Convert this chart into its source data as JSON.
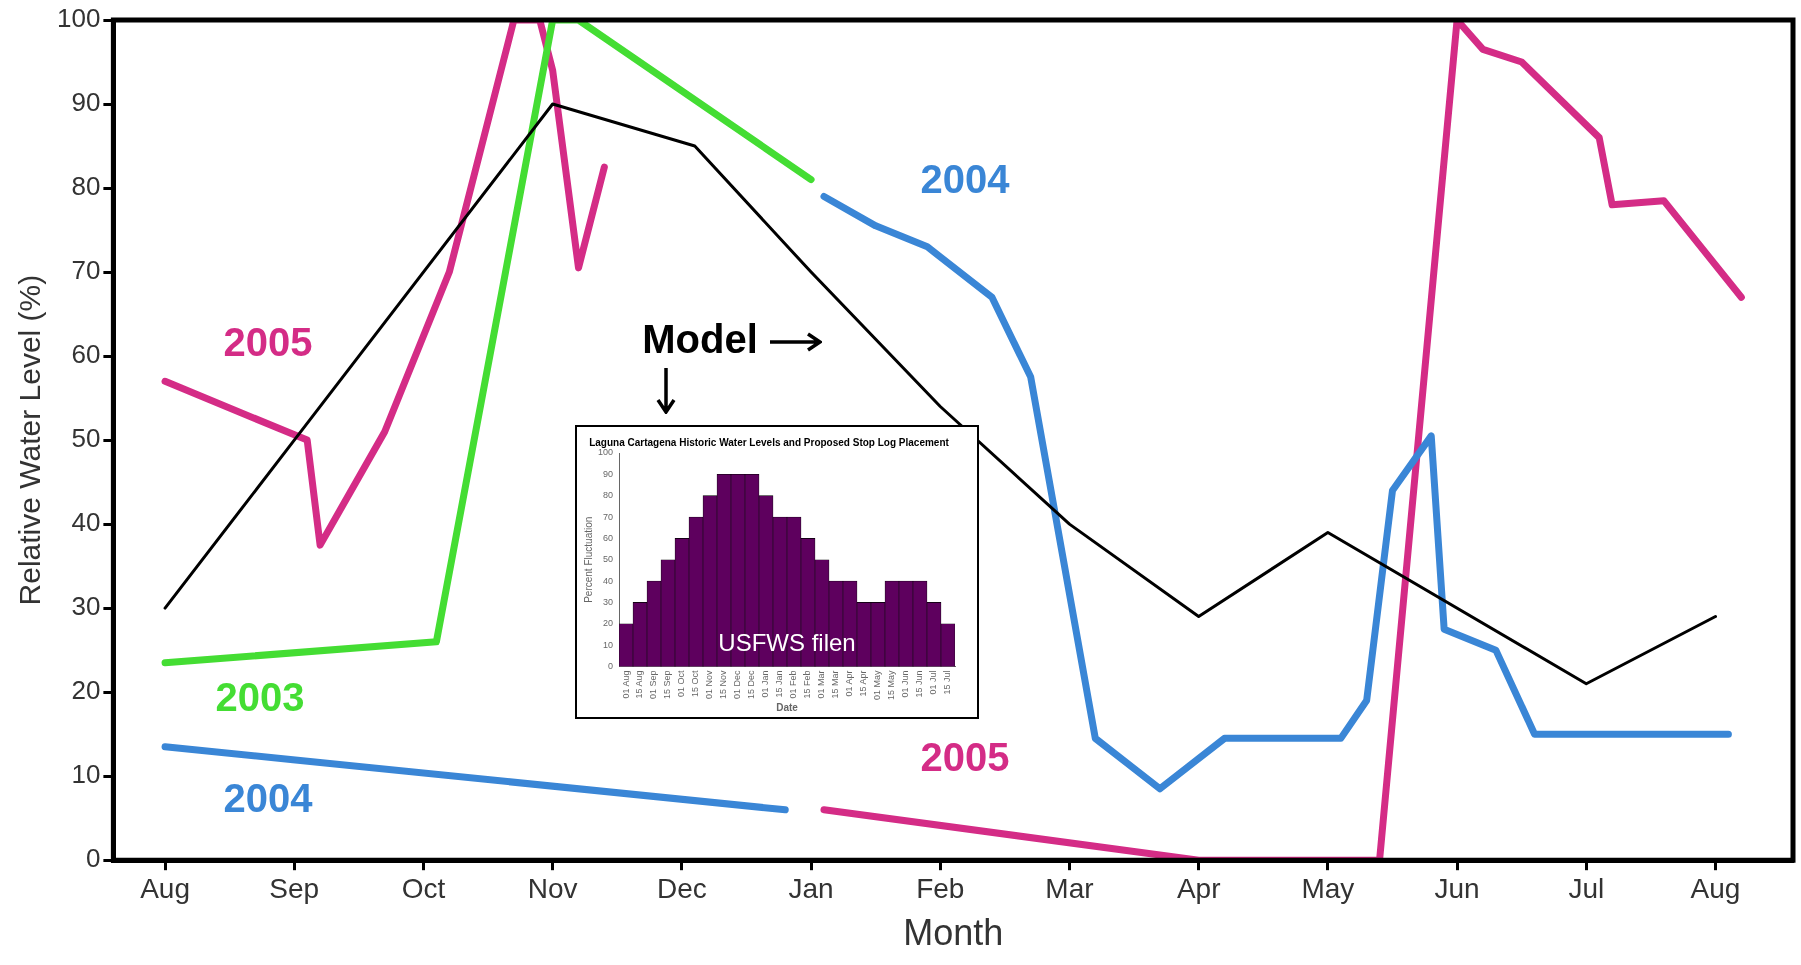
{
  "chart_data": [
    {
      "type": "line",
      "xlabel": "Month",
      "ylabel": "Relative Water Level (%)",
      "categories": [
        null,
        null,
        null,
        null,
        "Aug",
        null,
        null,
        null,
        null,
        null,
        null,
        null,
        null,
        null,
        "Sep",
        null,
        null,
        null,
        null,
        null,
        null,
        null,
        null,
        null,
        "Oct",
        null,
        null,
        null,
        null,
        null,
        null,
        null,
        null,
        null,
        "Nov",
        null,
        null,
        null,
        null,
        null,
        null,
        null,
        null,
        null,
        "Dec",
        null,
        null,
        null,
        null,
        null,
        null,
        null,
        null,
        null,
        "Jan",
        null,
        null,
        null,
        null,
        null,
        null,
        null,
        null,
        null,
        "Feb",
        null,
        null,
        null,
        null,
        null,
        null,
        null,
        null,
        null,
        "Mar",
        null,
        null,
        null,
        null,
        null,
        null,
        null,
        null,
        null,
        "Apr",
        null,
        null,
        null,
        null,
        null,
        null,
        null,
        null,
        null,
        "May",
        null,
        null,
        null,
        null,
        null,
        null,
        null,
        null,
        null,
        "Jun",
        null,
        null,
        null,
        null,
        null,
        null,
        null,
        null,
        null,
        "Jul",
        null,
        null,
        null,
        null,
        null,
        null,
        null,
        null,
        null,
        "Aug",
        null,
        null,
        null,
        null,
        null,
        null
      ],
      "ylim": [
        0,
        100
      ],
      "yticks": [
        0,
        10,
        20,
        30,
        40,
        50,
        60,
        70,
        80,
        90,
        100
      ],
      "series": [
        {
          "name": "Model",
          "color": "#000000",
          "values": [
            null,
            null,
            null,
            null,
            30,
            null,
            null,
            null,
            null,
            null,
            null,
            null,
            null,
            null,
            50,
            null,
            null,
            null,
            null,
            null,
            null,
            null,
            null,
            null,
            null,
            null,
            null,
            null,
            null,
            null,
            null,
            null,
            null,
            null,
            90,
            null,
            null,
            null,
            null,
            null,
            null,
            null,
            null,
            null,
            null,
            85,
            null,
            null,
            null,
            null,
            null,
            null,
            null,
            null,
            70,
            null,
            null,
            null,
            null,
            null,
            null,
            null,
            null,
            null,
            54,
            null,
            null,
            null,
            null,
            null,
            null,
            null,
            null,
            null,
            40,
            null,
            null,
            null,
            null,
            null,
            null,
            null,
            null,
            null,
            29,
            null,
            null,
            null,
            null,
            null,
            null,
            null,
            null,
            null,
            39,
            null,
            null,
            null,
            null,
            null,
            null,
            null,
            null,
            null,
            null,
            null,
            null,
            null,
            null,
            null,
            null,
            null,
            null,
            null,
            21,
            null,
            null,
            null,
            null,
            null,
            null,
            null,
            null,
            null,
            29,
            null,
            null,
            null,
            null,
            null,
            null
          ]
        },
        {
          "name": "2003",
          "color": "#44dd33",
          "values": [
            null,
            null,
            null,
            null,
            23.5,
            null,
            null,
            null,
            null,
            null,
            null,
            null,
            null,
            null,
            null,
            null,
            null,
            null,
            null,
            null,
            null,
            null,
            null,
            null,
            null,
            26,
            null,
            null,
            null,
            null,
            null,
            null,
            null,
            null,
            100,
            null,
            100,
            null,
            null,
            null,
            null,
            null,
            null,
            null,
            null,
            null,
            null,
            null,
            null,
            null,
            null,
            null,
            null,
            null,
            81,
            null,
            null,
            null,
            null,
            null,
            null,
            null,
            null,
            null,
            null,
            null,
            null,
            null,
            null,
            null,
            null,
            null,
            null,
            null,
            null,
            null,
            null,
            null,
            null,
            null,
            null,
            null,
            null,
            null,
            null,
            null,
            null,
            null,
            null,
            null,
            null,
            null,
            null,
            null,
            null,
            null,
            null,
            null,
            null,
            null,
            null,
            null,
            null,
            null,
            null,
            null,
            null,
            null,
            null,
            null,
            null,
            null,
            null,
            null,
            null,
            null,
            null,
            null,
            null,
            null,
            null,
            null,
            null,
            null,
            null,
            null,
            null,
            null,
            null,
            null,
            null
          ]
        },
        {
          "name": "2004",
          "color": "#3a86d6",
          "values": [
            null,
            null,
            null,
            null,
            13.5,
            null,
            null,
            null,
            null,
            null,
            null,
            null,
            null,
            null,
            null,
            null,
            null,
            null,
            null,
            null,
            null,
            null,
            null,
            null,
            null,
            null,
            null,
            null,
            null,
            null,
            null,
            null,
            null,
            null,
            null,
            null,
            null,
            null,
            null,
            null,
            null,
            null,
            null,
            null,
            null,
            null,
            null,
            null,
            null,
            null,
            null,
            null,
            6,
            null,
            null,
            null,
            null,
            null,
            null,
            null,
            null,
            null,
            null,
            null,
            null,
            null,
            null,
            null,
            null,
            null,
            null,
            null,
            null,
            null,
            null,
            null,
            null,
            null,
            null,
            null,
            null,
            null,
            null,
            null,
            null,
            null,
            null,
            null,
            null,
            null,
            null,
            null,
            null,
            null,
            null,
            null,
            null,
            null,
            null,
            null,
            null,
            null,
            null,
            null,
            null,
            null,
            null,
            null,
            null,
            null,
            null,
            null,
            null,
            null,
            null,
            null,
            null,
            null,
            null,
            null,
            null,
            null,
            null,
            null,
            null,
            null,
            null,
            null,
            null,
            null,
            null
          ]
        },
        {
          "name": "2004",
          "color": "#3a86d6",
          "values": [
            null,
            null,
            null,
            null,
            null,
            null,
            null,
            null,
            null,
            null,
            null,
            null,
            null,
            null,
            null,
            null,
            null,
            null,
            null,
            null,
            null,
            null,
            null,
            null,
            null,
            null,
            null,
            null,
            null,
            null,
            null,
            null,
            null,
            null,
            null,
            null,
            null,
            null,
            null,
            null,
            null,
            null,
            null,
            null,
            null,
            null,
            null,
            null,
            null,
            null,
            null,
            null,
            null,
            null,
            null,
            79,
            null,
            null,
            null,
            75.5,
            null,
            null,
            null,
            73,
            null,
            null,
            null,
            null,
            67,
            null,
            null,
            57.5,
            null,
            null,
            null,
            null,
            14.5,
            null,
            null,
            null,
            null,
            8.5,
            null,
            null,
            null,
            null,
            14.5,
            null,
            null,
            null,
            null,
            null,
            null,
            null,
            null,
            14.5,
            null,
            19,
            null,
            44,
            null,
            null,
            50.5,
            27.5,
            null,
            null,
            null,
            25,
            null,
            null,
            15,
            null,
            null,
            null,
            null,
            null,
            null,
            null,
            null,
            null,
            null,
            null,
            null,
            null,
            null,
            15,
            null,
            null,
            null,
            null,
            null
          ]
        },
        {
          "name": "2005",
          "color": "#d42c86",
          "values": [
            null,
            null,
            null,
            null,
            57,
            null,
            null,
            null,
            null,
            null,
            null,
            null,
            null,
            null,
            null,
            50,
            37.5,
            null,
            null,
            null,
            null,
            51,
            null,
            null,
            null,
            null,
            70,
            null,
            null,
            null,
            null,
            100,
            null,
            100,
            94,
            null,
            70.5,
            null,
            82.5,
            null,
            null,
            null,
            null,
            null,
            null,
            null,
            null,
            null,
            null,
            null,
            null,
            null,
            null,
            null,
            null,
            null,
            null,
            null,
            null,
            null,
            null,
            null,
            null,
            null,
            null,
            null,
            null,
            null,
            null,
            null,
            null,
            null,
            null,
            null,
            null,
            null,
            null,
            null,
            null,
            null,
            null,
            null,
            null,
            null,
            null,
            null,
            null,
            null,
            null,
            null,
            null,
            null,
            null,
            null,
            null,
            null,
            null,
            null,
            null,
            null,
            null,
            null,
            null,
            null,
            null,
            null,
            null,
            null,
            null,
            null,
            null,
            null,
            null,
            null,
            null,
            null,
            null,
            null,
            null,
            null,
            null,
            null,
            null,
            null,
            null,
            null,
            null,
            null,
            null,
            null,
            null
          ]
        },
        {
          "name": "2005",
          "color": "#d42c86",
          "values": [
            null,
            null,
            null,
            null,
            null,
            null,
            null,
            null,
            null,
            null,
            null,
            null,
            null,
            null,
            null,
            null,
            null,
            null,
            null,
            null,
            null,
            null,
            null,
            null,
            null,
            null,
            null,
            null,
            null,
            null,
            null,
            null,
            null,
            null,
            null,
            null,
            null,
            null,
            null,
            null,
            null,
            null,
            null,
            null,
            null,
            null,
            null,
            null,
            null,
            null,
            null,
            null,
            null,
            null,
            null,
            6,
            null,
            null,
            null,
            null,
            null,
            null,
            null,
            null,
            null,
            null,
            null,
            null,
            null,
            null,
            null,
            null,
            null,
            null,
            null,
            null,
            null,
            null,
            null,
            null,
            null,
            null,
            null,
            null,
            0,
            null,
            null,
            null,
            null,
            null,
            null,
            null,
            null,
            null,
            null,
            null,
            null,
            null,
            0,
            null,
            null,
            null,
            null,
            null,
            100,
            null,
            96.5,
            null,
            null,
            95,
            null,
            null,
            null,
            null,
            null,
            86,
            78,
            null,
            null,
            null,
            78.5,
            null,
            null,
            null,
            null,
            null,
            67,
            null,
            null,
            null,
            null
          ]
        }
      ]
    },
    {
      "type": "bar",
      "title": "Laguna Cartagena Historic Water Levels and Proposed Stop Log Placement",
      "xlabel": "Date",
      "ylabel": "Percent Fluctuation",
      "categories": [
        "01 Aug",
        "15 Aug",
        "01 Sep",
        "15 Sep",
        "01 Oct",
        "15 Oct",
        "01 Nov",
        "15 Nov",
        "01 Dec",
        "15 Dec",
        "01 Jan",
        "15 Jan",
        "01 Feb",
        "15 Feb",
        "01 Mar",
        "15 Mar",
        "01 Apr",
        "15 Apr",
        "01 May",
        "15 May",
        "01 Jun",
        "15 Jun",
        "01 Jul",
        "15 Jul"
      ],
      "values": [
        20,
        30,
        40,
        50,
        60,
        70,
        80,
        90,
        90,
        90,
        80,
        70,
        70,
        60,
        50,
        40,
        40,
        30,
        30,
        40,
        40,
        40,
        30,
        20
      ],
      "color": "#5e005e",
      "ylim": [
        0,
        100
      ],
      "yticks": [
        0,
        10,
        20,
        30,
        40,
        50,
        60,
        70,
        80,
        90,
        100
      ],
      "annotations": [
        "USFWS filen"
      ]
    }
  ]
}
